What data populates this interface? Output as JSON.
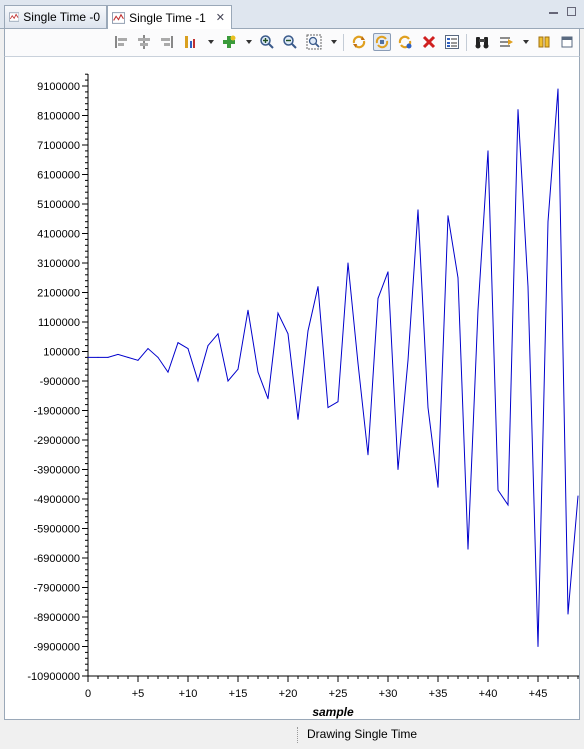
{
  "tabs": [
    {
      "label": "Single Time -0",
      "active": false,
      "icon": "chart-icon"
    },
    {
      "label": "Single Time -1",
      "active": true,
      "icon": "chart-icon"
    }
  ],
  "toolbar": {
    "buttons": [
      "align-left-icon",
      "align-center-icon",
      "align-right-icon",
      "series-icon",
      "add-icon",
      "zoom-in-icon",
      "zoom-out-icon",
      "zoom-fit-icon",
      "refresh-icon",
      "auto-refresh-icon",
      "refresh-all-icon",
      "delete-icon",
      "properties-icon",
      "binoculars-icon",
      "cursor-icon",
      "pause-icon"
    ]
  },
  "status": {
    "text": "Drawing Single Time"
  },
  "colors": {
    "series": "#0000cc",
    "axis": "#000000"
  },
  "chart_data": {
    "type": "line",
    "title": "",
    "xlabel": "sample",
    "ylabel": "",
    "xlim": [
      0,
      49
    ],
    "ylim": [
      -10900000,
      10900000
    ],
    "yticks": [
      9100000,
      8100000,
      7100000,
      6100000,
      5100000,
      4100000,
      3100000,
      2100000,
      1100000,
      100000,
      -900000,
      -1900000,
      -2900000,
      -3900000,
      -4900000,
      -5900000,
      -6900000,
      -7900000,
      -8900000,
      -9900000,
      -10900000
    ],
    "ytick_labels": [
      "9100000",
      "8100000",
      "7100000",
      "6100000",
      "5100000",
      "4100000",
      "3100000",
      "2100000",
      "1100000",
      "100000",
      "-900000",
      "-1900000",
      "-2900000",
      "-3900000",
      "-4900000",
      "-5900000",
      "-6900000",
      "-7900000",
      "-8900000",
      "-9900000",
      "-10900000"
    ],
    "xticks": [
      0,
      5,
      10,
      15,
      20,
      25,
      30,
      35,
      40,
      45
    ],
    "xtick_labels": [
      "0",
      "+5",
      "+10",
      "+15",
      "+20",
      "+25",
      "+30",
      "+35",
      "+40",
      "+45"
    ],
    "grid": false,
    "series": [
      {
        "x": [
          0,
          1,
          2,
          3,
          4,
          5,
          6,
          7,
          8,
          9,
          10,
          11,
          12,
          13,
          14,
          15,
          16,
          17,
          18,
          19,
          20,
          21,
          22,
          23,
          24,
          25,
          26,
          27,
          28,
          29,
          30,
          31,
          32,
          33,
          34,
          35,
          36,
          37,
          38,
          39,
          40,
          41,
          42,
          43,
          44,
          45,
          46,
          47,
          48,
          49
        ],
        "values": [
          -100000,
          -100000,
          -100000,
          0,
          -100000,
          -200000,
          200000,
          -100000,
          -600000,
          400000,
          200000,
          -900000,
          300000,
          700000,
          -900000,
          -500000,
          1500000,
          -600000,
          -1500000,
          1400000,
          700000,
          -2200000,
          800000,
          2300000,
          -1800000,
          -1600000,
          3100000,
          -300000,
          -3400000,
          1900000,
          2800000,
          -3900000,
          -200000,
          4900000,
          -1800000,
          -4500000,
          4700000,
          2600000,
          -6600000,
          1500000,
          6900000,
          -4600000,
          -5100000,
          8300000,
          2300000,
          -9900000,
          4500000,
          9000000,
          -8800000,
          -4800000
        ]
      }
    ]
  }
}
